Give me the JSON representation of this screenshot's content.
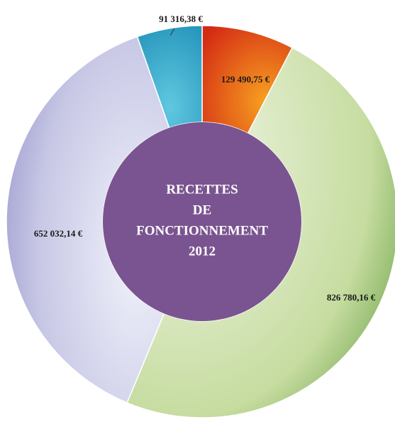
{
  "chart_data": {
    "type": "donut",
    "title": "RECETTES DE FONCTIONNEMENT 2012",
    "categories": [
      null,
      null,
      null,
      null
    ],
    "values": [
      129490.75,
      826780.16,
      652032.14,
      91316.38
    ],
    "value_labels": [
      "129 490,75 €",
      "826 780,16 €",
      "652 032,14 €",
      "91 316,38 €"
    ],
    "colors": [
      "#e0401a",
      "#b8d48a",
      "#b4b4dc",
      "#38acd0"
    ],
    "center_color": "#7a5490"
  }
}
